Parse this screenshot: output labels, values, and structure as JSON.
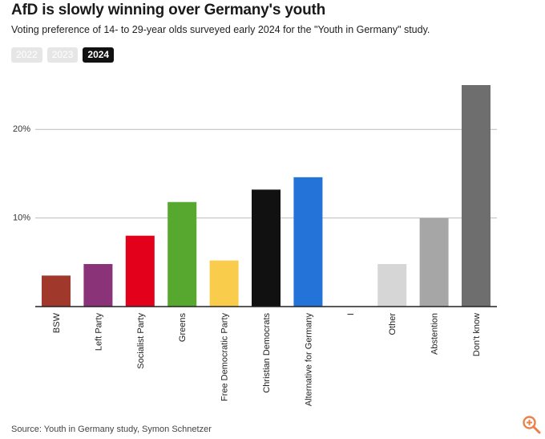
{
  "header": {
    "title": "AfD is slowly winning over Germany's youth",
    "subtitle": "Voting preference of 14- to 29-year olds surveyed early 2024 for the \"Youth in Germany\" study."
  },
  "tabs": [
    {
      "label": "2022",
      "active": false
    },
    {
      "label": "2023",
      "active": false
    },
    {
      "label": "2024",
      "active": true
    }
  ],
  "footer": {
    "source": "Source: Youth in Germany study, Symon Schnetzer"
  },
  "icons": {
    "zoom": "zoom-in-icon"
  },
  "colors": {
    "zoom_icon": "#e8824a",
    "grid": "#bbbbbb",
    "axis": "#222222"
  },
  "chart_data": {
    "type": "bar",
    "categories": [
      "BSW",
      "Left Party",
      "Socialist Party",
      "Greens",
      "Free Democratic Party",
      "Christian Democrats",
      "Alternative for Germany",
      "I",
      "Other",
      "Abstention",
      "Don't know"
    ],
    "values": [
      3.5,
      4.8,
      8.0,
      11.8,
      5.2,
      13.2,
      14.6,
      0,
      4.8,
      10.0,
      25.0
    ],
    "colors": [
      "#a0392b",
      "#8b3378",
      "#e3001b",
      "#57a82e",
      "#f9cc4c",
      "#111111",
      "#2373d9",
      "#cccccc",
      "#d6d6d6",
      "#a6a6a6",
      "#6e6e6e"
    ],
    "ylim": [
      0,
      25
    ],
    "yticks": [
      10,
      20
    ],
    "ytick_labels": [
      "10%",
      "20%"
    ],
    "grid": true,
    "xlabel": "",
    "ylabel": ""
  }
}
